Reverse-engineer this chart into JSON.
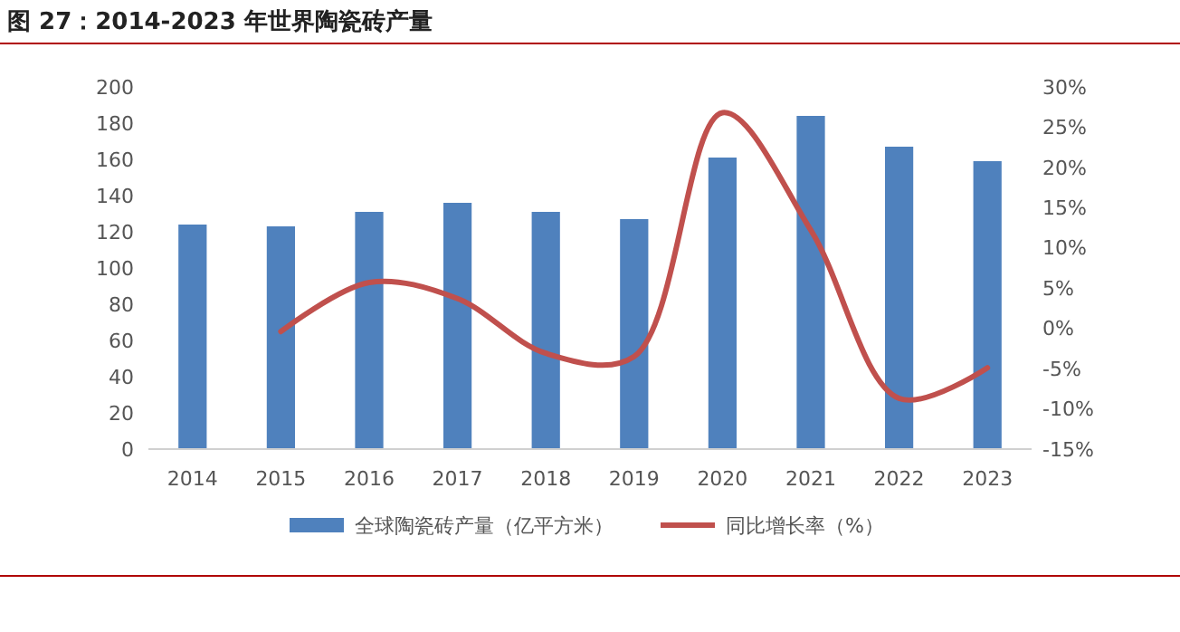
{
  "chart_data": {
    "type": "bar",
    "title": "图 27：2014-2023 年世界陶瓷砖产量",
    "categories": [
      "2014",
      "2015",
      "2016",
      "2017",
      "2018",
      "2019",
      "2020",
      "2021",
      "2022",
      "2023"
    ],
    "series": [
      {
        "name": "全球陶瓷砖产量（亿平方米）",
        "color": "#4f81bd",
        "values": [
          124,
          123,
          131,
          136,
          131,
          127,
          161,
          184,
          167,
          159
        ]
      },
      {
        "name": "同比增长率（%）",
        "type": "line",
        "axis": "y2",
        "color": "#c0504d",
        "values": [
          null,
          -0.4,
          5.7,
          3.7,
          -3.1,
          -3.5,
          26.8,
          12.2,
          -8.7,
          -4.9
        ]
      }
    ],
    "ylim": [
      0,
      200
    ],
    "yticks": [
      0,
      20,
      40,
      60,
      80,
      100,
      120,
      140,
      160,
      180,
      200
    ],
    "y2lim": [
      -15,
      30
    ],
    "y2ticks": [
      {
        "value": -15,
        "label": "-15%"
      },
      {
        "value": -10,
        "label": "-10%"
      },
      {
        "value": -5,
        "label": "-5%"
      },
      {
        "value": 0,
        "label": "0%"
      },
      {
        "value": 5,
        "label": "5%"
      },
      {
        "value": 10,
        "label": "10%"
      },
      {
        "value": 15,
        "label": "15%"
      },
      {
        "value": 20,
        "label": "20%"
      },
      {
        "value": 25,
        "label": "25%"
      },
      {
        "value": 30,
        "label": "30%"
      }
    ],
    "legend": "bottom",
    "grid": false
  }
}
